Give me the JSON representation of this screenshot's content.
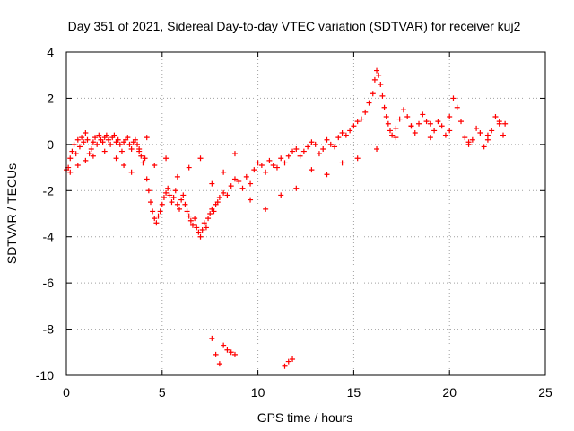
{
  "chart_data": {
    "type": "scatter",
    "title": "Day 351 of 2021, Sidereal Day-to-day VTEC variation (SDTVAR) for receiver kuj2",
    "xlabel": "GPS time / hours",
    "ylabel": "SDTVAR / TECUs",
    "xlim": [
      0,
      25
    ],
    "ylim": [
      -10,
      4
    ],
    "x_ticks": [
      0,
      5,
      10,
      15,
      20,
      25
    ],
    "y_ticks": [
      -10,
      -8,
      -6,
      -4,
      -2,
      0,
      2,
      4
    ],
    "x_tick_labels": [
      "0",
      "5",
      "10",
      "15",
      "20",
      "25"
    ],
    "y_tick_labels": [
      "-10",
      "-8",
      "-6",
      "-4",
      "-2",
      "0",
      "2",
      "4"
    ],
    "grid": true,
    "marker": "+",
    "color": "#ff0000",
    "series": [
      {
        "name": "kuj2",
        "x": [
          0.0,
          0.1,
          0.2,
          0.3,
          0.4,
          0.5,
          0.6,
          0.7,
          0.8,
          0.9,
          1.0,
          1.1,
          1.2,
          1.3,
          1.4,
          1.5,
          1.6,
          1.7,
          1.8,
          1.9,
          2.0,
          2.1,
          2.2,
          2.3,
          2.4,
          2.5,
          2.6,
          2.7,
          2.8,
          2.9,
          3.0,
          3.1,
          3.2,
          3.3,
          3.4,
          3.5,
          3.6,
          3.7,
          3.8,
          3.9,
          4.0,
          4.1,
          4.2,
          4.3,
          4.4,
          4.5,
          4.6,
          4.7,
          4.8,
          4.9,
          5.0,
          5.1,
          5.2,
          5.3,
          5.4,
          5.5,
          5.6,
          5.7,
          5.8,
          5.9,
          6.0,
          6.1,
          6.2,
          6.3,
          6.4,
          6.5,
          6.6,
          6.7,
          6.8,
          6.9,
          7.0,
          7.1,
          7.2,
          7.3,
          7.4,
          7.5,
          7.6,
          7.7,
          7.8,
          7.9,
          8.0,
          8.2,
          8.4,
          8.6,
          8.8,
          9.0,
          9.2,
          9.4,
          9.6,
          9.8,
          10.0,
          10.2,
          10.4,
          10.6,
          10.8,
          11.0,
          11.2,
          11.4,
          11.6,
          11.8,
          12.0,
          12.2,
          12.4,
          12.6,
          12.8,
          13.0,
          13.2,
          13.4,
          13.6,
          13.8,
          14.0,
          14.2,
          14.4,
          14.6,
          14.8,
          15.0,
          15.2,
          15.4,
          15.6,
          15.8,
          16.0,
          16.1,
          16.2,
          16.3,
          16.4,
          16.5,
          16.6,
          16.7,
          16.8,
          16.9,
          17.0,
          17.2,
          17.4,
          17.6,
          17.8,
          18.0,
          18.2,
          18.4,
          18.6,
          18.8,
          19.0,
          19.2,
          19.4,
          19.6,
          19.8,
          20.0,
          20.2,
          20.4,
          20.6,
          20.8,
          21.0,
          21.2,
          21.4,
          21.6,
          21.8,
          22.0,
          22.2,
          22.4,
          22.6,
          22.8,
          22.9,
          0.2,
          0.6,
          1.0,
          1.4,
          2.0,
          2.6,
          3.0,
          3.4,
          3.8,
          4.2,
          4.6,
          5.2,
          5.8,
          6.4,
          7.0,
          7.6,
          8.2,
          8.8,
          9.6,
          10.4,
          11.2,
          12.0,
          12.8,
          13.6,
          14.4,
          15.2,
          16.2,
          17.2,
          18.0,
          19.0,
          20.0,
          21.0,
          22.0,
          22.6,
          7.6,
          7.8,
          8.0,
          8.2,
          8.4,
          8.6,
          8.8,
          11.4,
          11.6,
          11.8
        ],
        "y": [
          -1.1,
          -1.0,
          -0.6,
          -0.3,
          0.0,
          -0.4,
          0.2,
          -0.1,
          0.3,
          0.1,
          0.5,
          0.2,
          -0.4,
          -0.2,
          0.1,
          0.3,
          0.0,
          0.4,
          0.2,
          0.1,
          0.3,
          0.4,
          0.2,
          0.0,
          0.3,
          0.4,
          0.1,
          0.2,
          0.0,
          -0.3,
          0.1,
          0.2,
          0.3,
          0.0,
          -0.2,
          0.1,
          0.2,
          0.0,
          -0.3,
          -0.5,
          -0.8,
          -0.6,
          -1.5,
          -2.0,
          -2.5,
          -2.9,
          -3.2,
          -3.4,
          -3.1,
          -2.9,
          -2.6,
          -2.3,
          -2.1,
          -1.9,
          -2.2,
          -2.5,
          -2.3,
          -2.0,
          -2.6,
          -2.8,
          -2.4,
          -2.2,
          -2.6,
          -2.9,
          -3.1,
          -3.3,
          -3.5,
          -3.2,
          -3.6,
          -3.8,
          -4.0,
          -3.7,
          -3.4,
          -3.6,
          -3.2,
          -3.0,
          -2.8,
          -2.9,
          -2.6,
          -2.5,
          -2.3,
          -2.1,
          -2.2,
          -1.8,
          -1.5,
          -1.6,
          -1.9,
          -1.4,
          -1.7,
          -1.1,
          -0.8,
          -0.9,
          -1.2,
          -0.7,
          -0.9,
          -1.0,
          -0.6,
          -0.8,
          -0.5,
          -0.3,
          -0.2,
          -0.5,
          -0.3,
          -0.1,
          0.1,
          0.0,
          -0.4,
          -0.2,
          0.2,
          0.0,
          -0.1,
          0.3,
          0.5,
          0.4,
          0.6,
          0.8,
          1.0,
          1.1,
          1.4,
          1.8,
          2.2,
          2.8,
          3.2,
          3.0,
          2.6,
          2.1,
          1.6,
          1.2,
          0.9,
          0.6,
          0.4,
          0.7,
          1.1,
          1.5,
          1.2,
          0.8,
          0.5,
          0.9,
          1.3,
          1.0,
          0.3,
          0.6,
          1.0,
          0.8,
          0.4,
          1.2,
          2.0,
          1.6,
          1.0,
          0.3,
          0.1,
          0.2,
          0.7,
          0.5,
          -0.1,
          0.2,
          0.6,
          1.2,
          0.9,
          0.4,
          0.9,
          -1.2,
          -0.9,
          -0.7,
          -0.5,
          -0.3,
          -0.6,
          -0.9,
          -1.2,
          -0.2,
          0.3,
          -0.9,
          -0.6,
          -1.4,
          -1.0,
          -0.6,
          -1.7,
          -1.2,
          -0.4,
          -2.4,
          -2.8,
          -2.2,
          -1.9,
          -1.1,
          -1.3,
          -0.8,
          -0.6,
          -0.2,
          0.3,
          0.8,
          0.9,
          0.6,
          0.0,
          0.4,
          1.0,
          -8.4,
          -9.1,
          -9.5,
          -8.7,
          -8.9,
          -9.0,
          -9.1,
          -9.6,
          -9.4,
          -9.3
        ]
      }
    ]
  }
}
